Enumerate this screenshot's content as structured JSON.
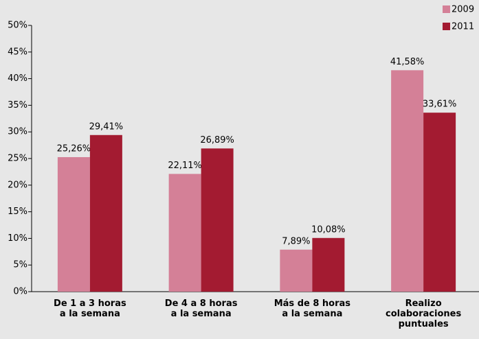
{
  "chart_data": {
    "type": "bar",
    "categories": [
      "De 1 a 3 horas\na la semana",
      "De 4 a 8 horas\na la semana",
      "Más de 8 horas\na la semana",
      "Realizo\ncolaboraciones\npuntuales"
    ],
    "series": [
      {
        "name": "2009",
        "color": "#d48097",
        "values": [
          25.26,
          22.11,
          7.89,
          41.58
        ],
        "value_labels": [
          "25,26%",
          "22,11%",
          "7,89%",
          "41,58%"
        ]
      },
      {
        "name": "2011",
        "color": "#a31b31",
        "values": [
          29.41,
          26.89,
          10.08,
          33.61
        ],
        "value_labels": [
          "29,41%",
          "26,89%",
          "10,08%",
          "33,61%"
        ]
      }
    ],
    "ylim": [
      0,
      50
    ],
    "yticks": [
      {
        "value": 0,
        "label": "0%"
      },
      {
        "value": 5,
        "label": "5%"
      },
      {
        "value": 10,
        "label": "10%"
      },
      {
        "value": 15,
        "label": "15%"
      },
      {
        "value": 20,
        "label": "20%"
      },
      {
        "value": 25,
        "label": "25%"
      },
      {
        "value": 30,
        "label": "30%"
      },
      {
        "value": 35,
        "label": "35%"
      },
      {
        "value": 40,
        "label": "40%"
      },
      {
        "value": 45,
        "label": "45%"
      },
      {
        "value": 50,
        "label": "50%"
      }
    ],
    "legend": "top-right"
  }
}
